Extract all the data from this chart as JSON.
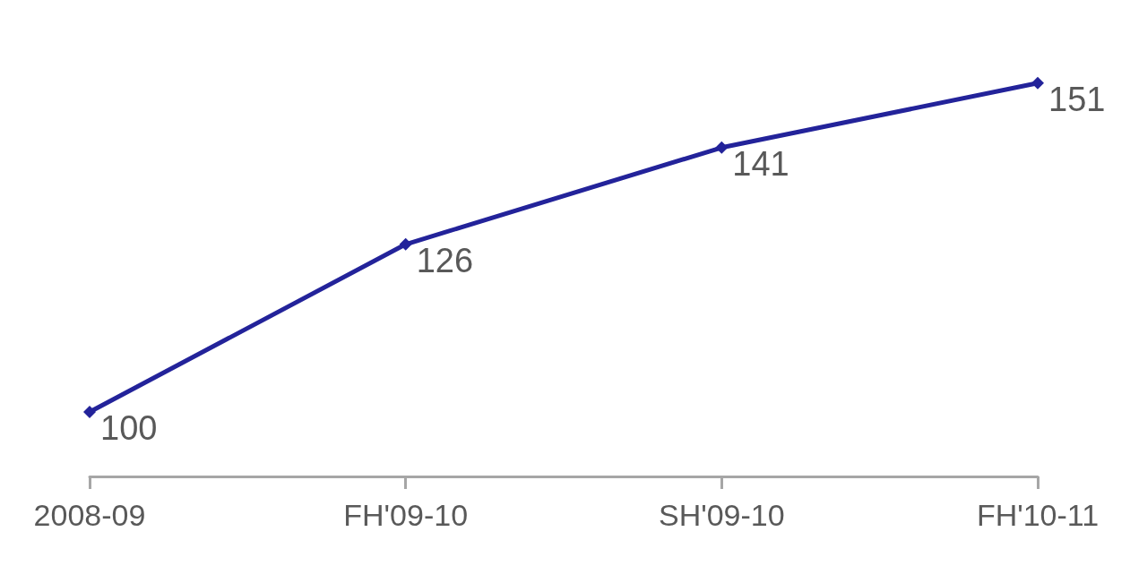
{
  "chart_data": {
    "type": "line",
    "categories": [
      "2008-09",
      "FH'09-10",
      "SH'09-10",
      "FH'10-11"
    ],
    "series": [
      {
        "color": "#23239a",
        "values": [
          100,
          126,
          141,
          151
        ]
      }
    ],
    "data_labels": true,
    "grid": false,
    "marker": "diamond",
    "line_style": "solid",
    "tick_labels": "x"
  }
}
